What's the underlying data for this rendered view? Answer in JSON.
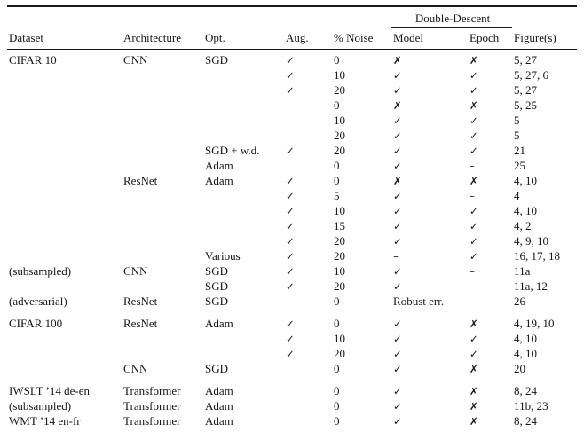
{
  "table": {
    "span_header": "Double-Descent",
    "columns": [
      "Dataset",
      "Architecture",
      "Opt.",
      "Aug.",
      "% Noise",
      "Model",
      "Epoch",
      "Figure(s)"
    ],
    "glyphs": {
      "check": "✓",
      "cross": "✗",
      "dash": "–"
    },
    "section_start_rows": [
      17,
      21
    ],
    "rows": [
      [
        "CIFAR 10",
        "CNN",
        "SGD",
        "✓",
        "0",
        "✗",
        "✗",
        "5, 27"
      ],
      [
        "",
        "",
        "",
        "✓",
        "10",
        "✓",
        "✓",
        "5, 27, 6"
      ],
      [
        "",
        "",
        "",
        "✓",
        "20",
        "✓",
        "✓",
        "5, 27"
      ],
      [
        "",
        "",
        "",
        "",
        "0",
        "✗",
        "✗",
        "5, 25"
      ],
      [
        "",
        "",
        "",
        "",
        "10",
        "✓",
        "✓",
        "5"
      ],
      [
        "",
        "",
        "",
        "",
        "20",
        "✓",
        "✓",
        "5"
      ],
      [
        "",
        "",
        "SGD + w.d.",
        "✓",
        "20",
        "✓",
        "✓",
        "21"
      ],
      [
        "",
        "",
        "Adam",
        "",
        "0",
        "✓",
        "–",
        "25"
      ],
      [
        "",
        "ResNet",
        "Adam",
        "✓",
        "0",
        "✗",
        "✗",
        "4, 10"
      ],
      [
        "",
        "",
        "",
        "✓",
        "5",
        "✓",
        "–",
        "4"
      ],
      [
        "",
        "",
        "",
        "✓",
        "10",
        "✓",
        "✓",
        "4, 10"
      ],
      [
        "",
        "",
        "",
        "✓",
        "15",
        "✓",
        "✓",
        "4, 2"
      ],
      [
        "",
        "",
        "",
        "✓",
        "20",
        "✓",
        "✓",
        "4, 9, 10"
      ],
      [
        "",
        "",
        "Various",
        "✓",
        "20",
        "–",
        "✓",
        "16, 17, 18"
      ],
      [
        "(subsampled)",
        "CNN",
        "SGD",
        "✓",
        "10",
        "✓",
        "–",
        "11a"
      ],
      [
        "",
        "",
        "SGD",
        "✓",
        "20",
        "✓",
        "–",
        "11a, 12"
      ],
      [
        "(adversarial)",
        "ResNet",
        "SGD",
        "",
        "0",
        "Robust err.",
        "–",
        "26"
      ],
      [
        "CIFAR 100",
        "ResNet",
        "Adam",
        "✓",
        "0",
        "✓",
        "✗",
        "4, 19, 10"
      ],
      [
        "",
        "",
        "",
        "✓",
        "10",
        "✓",
        "✓",
        "4, 10"
      ],
      [
        "",
        "",
        "",
        "✓",
        "20",
        "✓",
        "✓",
        "4, 10"
      ],
      [
        "",
        "CNN",
        "SGD",
        "",
        "0",
        "✓",
        "✗",
        "20"
      ],
      [
        "IWSLT ’14 de-en",
        "Transformer",
        "Adam",
        "",
        "0",
        "✓",
        "✗",
        "8, 24"
      ],
      [
        "(subsampled)",
        "Transformer",
        "Adam",
        "",
        "0",
        "✓",
        "✗",
        "11b, 23"
      ],
      [
        "WMT ’14 en-fr",
        "Transformer",
        "Adam",
        "",
        "0",
        "✓",
        "✗",
        "8, 24"
      ]
    ]
  }
}
